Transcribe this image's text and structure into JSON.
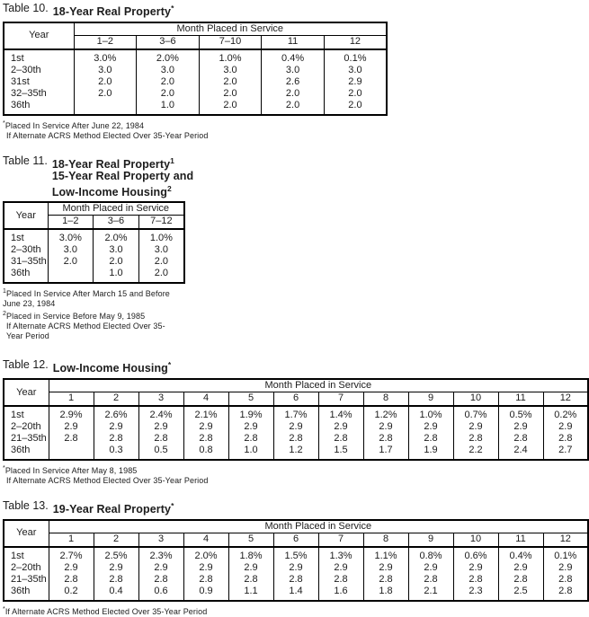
{
  "page": {
    "background": "#ffffff",
    "text_color": "#1c1c1c",
    "border_color": "#000000"
  },
  "tables": [
    {
      "title": {
        "prefix": "Table 10.",
        "lines": [
          {
            "text": "18-Year Real Property",
            "sup": "*"
          }
        ]
      },
      "year_header": "Year",
      "month_header": "Month Placed in Service",
      "columns": [
        "1–2",
        "3–6",
        "7–10",
        "11",
        "12"
      ],
      "rows": [
        {
          "label": "1st",
          "values": [
            "3.0%",
            "2.0%",
            "1.0%",
            "0.4%",
            "0.1%"
          ]
        },
        {
          "label": "2–30th",
          "values": [
            "3.0",
            "3.0",
            "3.0",
            "3.0",
            "3.0"
          ]
        },
        {
          "label": "31st",
          "values": [
            "2.0",
            "2.0",
            "2.0",
            "2.6",
            "2.9"
          ]
        },
        {
          "label": "32–35th",
          "values": [
            "2.0",
            "2.0",
            "2.0",
            "2.0",
            "2.0"
          ]
        },
        {
          "label": "36th",
          "values": [
            "",
            "1.0",
            "2.0",
            "2.0",
            "2.0"
          ]
        }
      ],
      "footnotes": [
        {
          "marker": "*",
          "text": "Placed In Service After June 22, 1984"
        },
        {
          "marker": "",
          "text": "If Alternate ACRS Method Elected Over 35-Year Period"
        }
      ]
    },
    {
      "title": {
        "prefix": "Table 11.",
        "lines": [
          {
            "text": "18-Year Real Property",
            "sup": "1"
          },
          {
            "text": "15-Year Real Property and",
            "sup": ""
          },
          {
            "text": "Low-Income Housing",
            "sup": "2"
          }
        ]
      },
      "year_header": "Year",
      "month_header": "Month Placed in Service",
      "columns": [
        "1–2",
        "3–6",
        "7–12"
      ],
      "rows": [
        {
          "label": "1st",
          "values": [
            "3.0%",
            "2.0%",
            "1.0%"
          ]
        },
        {
          "label": "2–30th",
          "values": [
            "3.0",
            "3.0",
            "3.0"
          ]
        },
        {
          "label": "31–35th",
          "values": [
            "2.0",
            "2.0",
            "2.0"
          ]
        },
        {
          "label": "36th",
          "values": [
            "",
            "1.0",
            "2.0"
          ]
        }
      ],
      "footnotes": [
        {
          "marker": "1",
          "text": "Placed In Service After March 15 and Before June 23, 1984"
        },
        {
          "marker": "2",
          "text": "Placed in Service Before May 9, 1985"
        },
        {
          "marker": "",
          "text": "If Alternate ACRS Method Elected Over 35-Year Period"
        }
      ]
    },
    {
      "title": {
        "prefix": "Table 12.",
        "lines": [
          {
            "text": "Low-Income Housing",
            "sup": "*"
          }
        ]
      },
      "year_header": "Year",
      "month_header": "Month Placed in Service",
      "columns": [
        "1",
        "2",
        "3",
        "4",
        "5",
        "6",
        "7",
        "8",
        "9",
        "10",
        "11",
        "12"
      ],
      "rows": [
        {
          "label": "1st",
          "values": [
            "2.9%",
            "2.6%",
            "2.4%",
            "2.1%",
            "1.9%",
            "1.7%",
            "1.4%",
            "1.2%",
            "1.0%",
            "0.7%",
            "0.5%",
            "0.2%"
          ]
        },
        {
          "label": "2–20th",
          "values": [
            "2.9",
            "2.9",
            "2.9",
            "2.9",
            "2.9",
            "2.9",
            "2.9",
            "2.9",
            "2.9",
            "2.9",
            "2.9",
            "2.9"
          ]
        },
        {
          "label": "21–35th",
          "values": [
            "2.8",
            "2.8",
            "2.8",
            "2.8",
            "2.8",
            "2.8",
            "2.8",
            "2.8",
            "2.8",
            "2.8",
            "2.8",
            "2.8"
          ]
        },
        {
          "label": "36th",
          "values": [
            "",
            "0.3",
            "0.5",
            "0.8",
            "1.0",
            "1.2",
            "1.5",
            "1.7",
            "1.9",
            "2.2",
            "2.4",
            "2.7"
          ]
        }
      ],
      "footnotes": [
        {
          "marker": "*",
          "text": "Placed In Service After May 8, 1985"
        },
        {
          "marker": "",
          "text": "If Alternate ACRS Method Elected Over 35-Year Period"
        }
      ]
    },
    {
      "title": {
        "prefix": "Table 13.",
        "lines": [
          {
            "text": "19-Year Real Property",
            "sup": "*"
          }
        ]
      },
      "year_header": "Year",
      "month_header": "Month Placed in Service",
      "columns": [
        "1",
        "2",
        "3",
        "4",
        "5",
        "6",
        "7",
        "8",
        "9",
        "10",
        "11",
        "12"
      ],
      "rows": [
        {
          "label": "1st",
          "values": [
            "2.7%",
            "2.5%",
            "2.3%",
            "2.0%",
            "1.8%",
            "1.5%",
            "1.3%",
            "1.1%",
            "0.8%",
            "0.6%",
            "0.4%",
            "0.1%"
          ]
        },
        {
          "label": "2–20th",
          "values": [
            "2.9",
            "2.9",
            "2.9",
            "2.9",
            "2.9",
            "2.9",
            "2.9",
            "2.9",
            "2.9",
            "2.9",
            "2.9",
            "2.9"
          ]
        },
        {
          "label": "21–35th",
          "values": [
            "2.8",
            "2.8",
            "2.8",
            "2.8",
            "2.8",
            "2.8",
            "2.8",
            "2.8",
            "2.8",
            "2.8",
            "2.8",
            "2.8"
          ]
        },
        {
          "label": "36th",
          "values": [
            "0.2",
            "0.4",
            "0.6",
            "0.9",
            "1.1",
            "1.4",
            "1.6",
            "1.8",
            "2.1",
            "2.3",
            "2.5",
            "2.8"
          ]
        }
      ],
      "footnotes": [
        {
          "marker": "*",
          "text": "If Alternate ACRS Method Elected Over 35-Year Period"
        }
      ]
    }
  ]
}
